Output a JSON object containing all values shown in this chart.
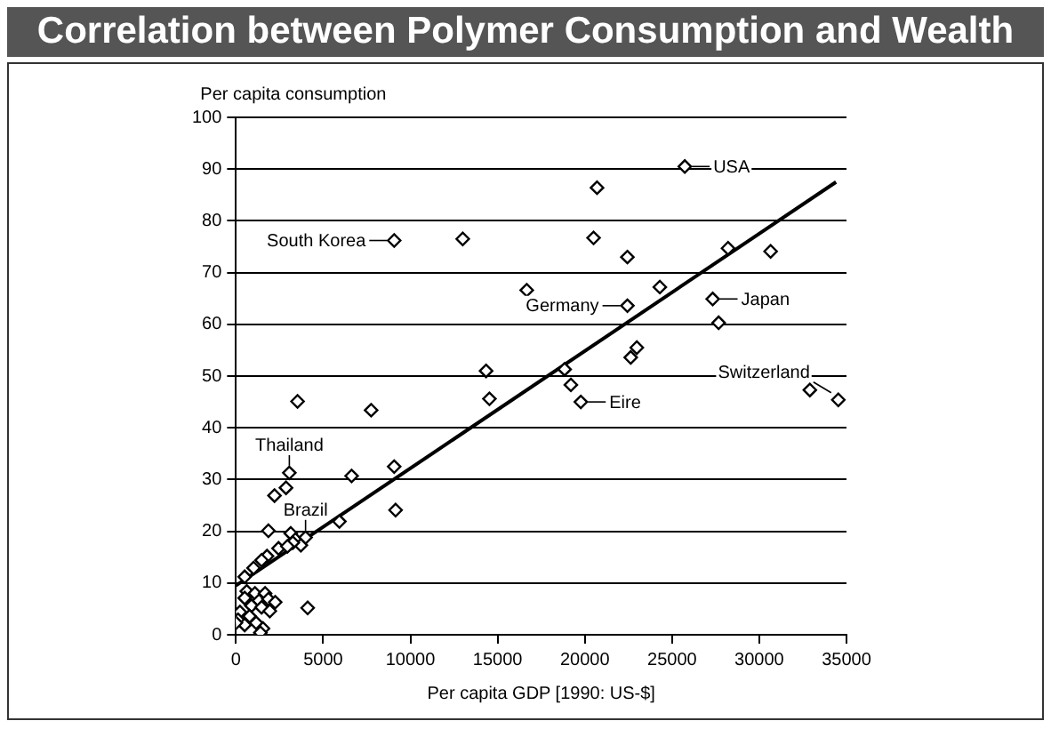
{
  "chart_data": {
    "type": "scatter",
    "title": "Correlation between Polymer Consumption and Wealth",
    "xlabel": "Per capita GDP [1990: US-$]",
    "ylabel": "Per capita consumption",
    "xlim": [
      0,
      35000
    ],
    "xticks": [
      0,
      5000,
      10000,
      15000,
      20000,
      25000,
      30000,
      35000
    ],
    "ylim": [
      0,
      100
    ],
    "yticks": [
      0,
      10,
      20,
      30,
      40,
      50,
      60,
      70,
      80,
      90,
      100
    ],
    "grid": "y",
    "marker": "diamond",
    "series": [
      {
        "color": "#000000",
        "x": [
          9070,
          13000,
          16670,
          20700,
          20500,
          14340,
          14530,
          18840,
          19200,
          19770,
          3530,
          7750,
          9070,
          25730,
          22440,
          28210,
          30650,
          24300,
          22440,
          27330,
          27670,
          22980,
          22630,
          32900,
          34530,
          3060,
          2870,
          2210,
          6630,
          9150,
          5930,
          1860,
          3140,
          3410,
          3990,
          3720,
          3260,
          2440,
          2950,
          1780,
          1470,
          1010,
          500,
          4110,
          620,
          1090,
          1670,
          500,
          1320,
          1860,
          2250,
          890,
          1470,
          1940,
          230,
          780,
          120,
          1160,
          500,
          1550,
          1400,
          0
        ],
        "values": [
          76.2,
          76.5,
          66.6,
          86.4,
          76.7,
          51,
          45.6,
          51.3,
          48.3,
          45,
          45.1,
          43.4,
          32.5,
          90.5,
          73,
          74.7,
          74.1,
          67.2,
          63.6,
          64.9,
          60.3,
          55.5,
          53.6,
          47.3,
          45.4,
          31.3,
          28.4,
          26.9,
          30.7,
          24.1,
          21.9,
          20.1,
          19.6,
          18.4,
          18.8,
          17.3,
          17.8,
          16.7,
          17.1,
          15.2,
          14.4,
          12.9,
          11.2,
          5.2,
          8.4,
          8,
          8,
          7.1,
          6.6,
          6.9,
          6.3,
          5.6,
          5.3,
          4.6,
          4.4,
          3.6,
          2.9,
          2.3,
          1.9,
          1.2,
          0.4,
          2.3
        ]
      },
      {
        "type": "line",
        "color": "#000000",
        "marker": "none",
        "x": [
          0,
          34400
        ],
        "values": [
          9.5,
          87.5
        ]
      }
    ],
    "annotations": [
      {
        "text": "USA",
        "x": 25730,
        "y": 90.5
      },
      {
        "text": "South Korea",
        "x": 9070,
        "y": 76.2
      },
      {
        "text": "Japan",
        "x": 27330,
        "y": 64.9
      },
      {
        "text": "Germany",
        "x": 22440,
        "y": 63.6
      },
      {
        "text": "Eire",
        "x": 19770,
        "y": 45
      },
      {
        "text": "Switzerland",
        "x": 34530,
        "y": 45.4
      },
      {
        "text": "Thailand",
        "x": 3060,
        "y": 31.3
      },
      {
        "text": "Brazil",
        "x": 3990,
        "y": 18.8
      }
    ]
  }
}
